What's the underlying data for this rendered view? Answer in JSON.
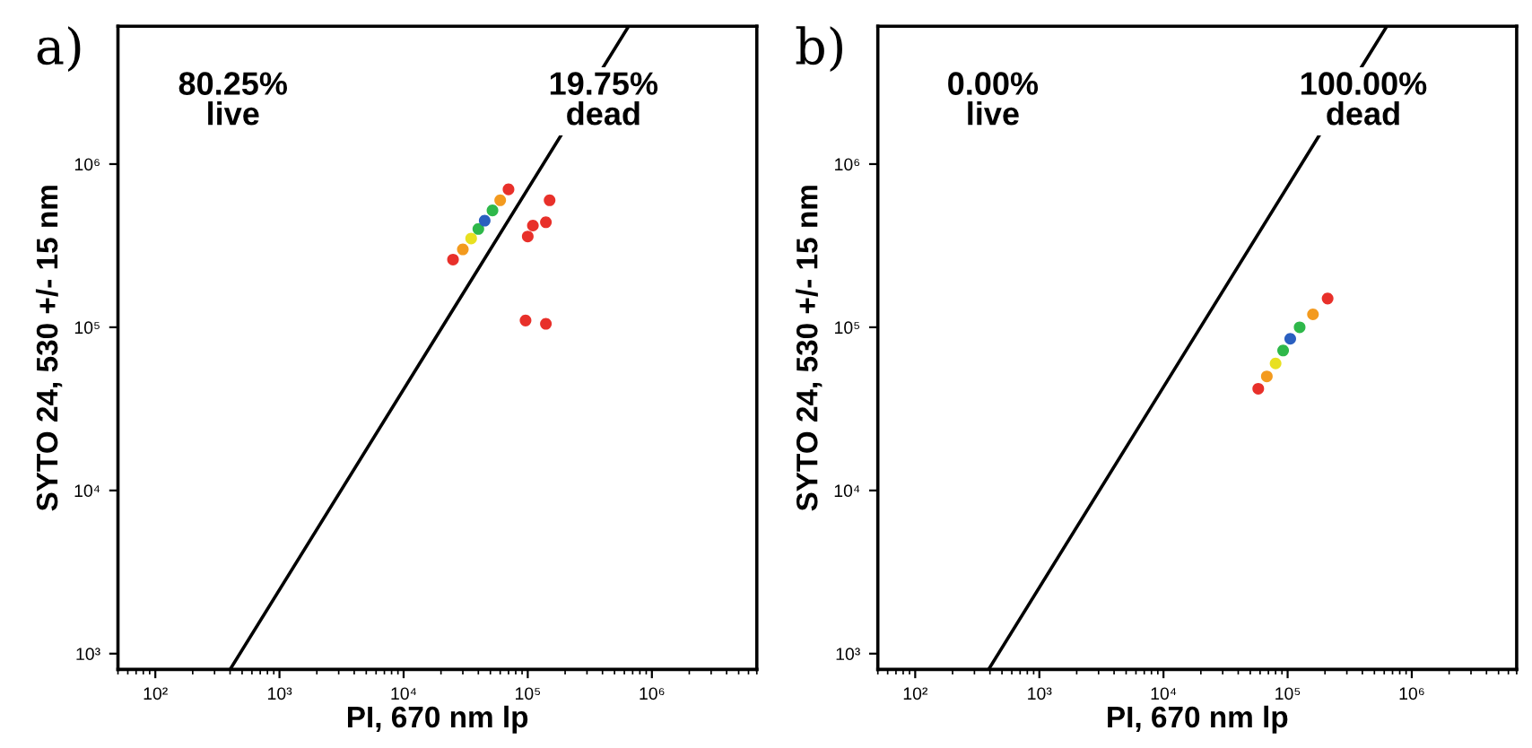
{
  "chart_data": [
    {
      "type": "scatter",
      "title": "a)",
      "xlabel": "PI, 670 nm lp",
      "ylabel": "SYTO 24, 530 +/- 15 nm",
      "log": "xy",
      "xlim": [
        50,
        7000000
      ],
      "ylim": [
        800,
        7000000
      ],
      "xticks": [
        {
          "value": 100,
          "label": "10²"
        },
        {
          "value": 1000,
          "label": "10³"
        },
        {
          "value": 10000,
          "label": "10⁴"
        },
        {
          "value": 100000,
          "label": "10⁵"
        },
        {
          "value": 1000000,
          "label": "10⁶"
        }
      ],
      "yticks": [
        {
          "value": 1000,
          "label": "10³"
        },
        {
          "value": 10000,
          "label": "10⁴"
        },
        {
          "value": 100000,
          "label": "10⁵"
        },
        {
          "value": 1000000,
          "label": "10⁶"
        }
      ],
      "annotations": [
        "80.25%\nlive",
        "19.75%\ndead"
      ],
      "grid": false,
      "series": [
        {
          "type": "line",
          "color": "#000000",
          "x": [
            400,
            650000
          ],
          "values": [
            800,
            7000000
          ]
        },
        {
          "marker": "circle",
          "x": [
            25000,
            30000,
            35000,
            40000,
            45000,
            52000,
            60000,
            70000,
            100000,
            110000,
            140000,
            150000,
            96000,
            140000
          ],
          "values": [
            260000,
            300000,
            350000,
            400000,
            450000,
            520000,
            600000,
            700000,
            360000,
            420000,
            440000,
            600000,
            110000,
            105000
          ],
          "colors": [
            "#e8302a",
            "#f39a1e",
            "#e8e020",
            "#2eb84a",
            "#2a5fc0",
            "#2eb84a",
            "#f39a1e",
            "#e8302a",
            "#e8302a",
            "#e8302a",
            "#e8302a",
            "#e8302a",
            "#e8302a",
            "#e8302a"
          ]
        }
      ]
    },
    {
      "type": "scatter",
      "title": "b)",
      "xlabel": "PI, 670 nm lp",
      "ylabel": "SYTO 24, 530 +/- 15 nm",
      "log": "xy",
      "xlim": [
        50,
        7000000
      ],
      "ylim": [
        800,
        7000000
      ],
      "xticks": [
        {
          "value": 100,
          "label": "10²"
        },
        {
          "value": 1000,
          "label": "10³"
        },
        {
          "value": 10000,
          "label": "10⁴"
        },
        {
          "value": 100000,
          "label": "10⁵"
        },
        {
          "value": 1000000,
          "label": "10⁶"
        }
      ],
      "yticks": [
        {
          "value": 1000,
          "label": "10³"
        },
        {
          "value": 10000,
          "label": "10⁴"
        },
        {
          "value": 100000,
          "label": "10⁵"
        },
        {
          "value": 1000000,
          "label": "10⁶"
        }
      ],
      "annotations": [
        "0.00%\nlive",
        "100.00%\ndead"
      ],
      "grid": false,
      "series": [
        {
          "type": "line",
          "color": "#000000",
          "x": [
            390,
            630000
          ],
          "values": [
            800,
            7000000
          ]
        },
        {
          "marker": "circle",
          "x": [
            58000,
            68000,
            80000,
            92000,
            105000,
            125000,
            160000,
            210000
          ],
          "values": [
            42000,
            50000,
            60000,
            72000,
            85000,
            100000,
            120000,
            150000
          ],
          "colors": [
            "#e8302a",
            "#f39a1e",
            "#e8e020",
            "#2eb84a",
            "#2a5fc0",
            "#2eb84a",
            "#f39a1e",
            "#e8302a"
          ]
        }
      ]
    }
  ]
}
